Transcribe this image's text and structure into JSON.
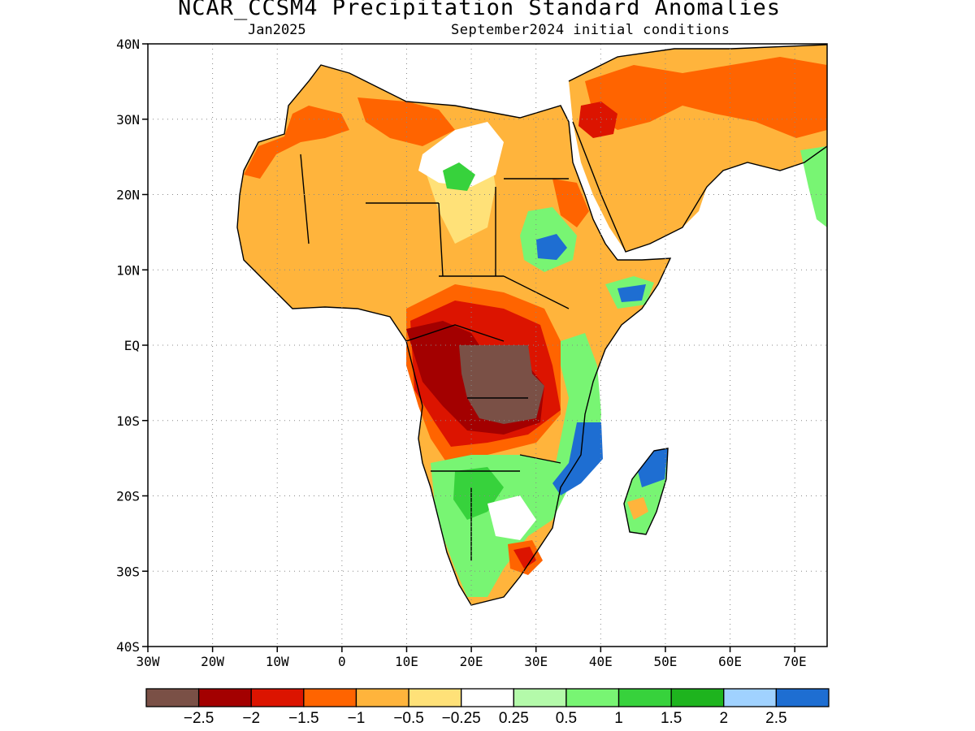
{
  "header": {
    "title": "NCAR_CCSM4 Precipitation Standard Anomalies",
    "valid_month": "Jan2025",
    "init_conditions": "September2024 initial conditions"
  },
  "map": {
    "lat_labels": [
      "40N",
      "30N",
      "20N",
      "10N",
      "EQ",
      "10S",
      "20S",
      "30S",
      "40S"
    ],
    "lat_values": [
      40,
      30,
      20,
      10,
      0,
      -10,
      -20,
      -30,
      -40
    ],
    "lon_labels": [
      "30W",
      "20W",
      "10W",
      "0",
      "10E",
      "20E",
      "30E",
      "40E",
      "50E",
      "60E",
      "70E"
    ],
    "lon_values": [
      -30,
      -20,
      -10,
      0,
      10,
      20,
      30,
      40,
      50,
      60,
      70
    ],
    "lon_range": [
      -30,
      75
    ],
    "lat_range": [
      -40,
      40
    ],
    "grid": "dotted"
  },
  "legend": {
    "colors": [
      "#7a5046",
      "#a30000",
      "#dc1400",
      "#ff6400",
      "#ffb43c",
      "#ffe178",
      "#ffffff",
      "#b4faaa",
      "#78f573",
      "#37d23c",
      "#1eb41e",
      "#a0d2ff",
      "#1e6ed2"
    ],
    "labels": [
      "−2.5",
      "−2",
      "−1.5",
      "−1",
      "−0.5",
      "−0.25",
      "0.25",
      "0.5",
      "1",
      "1.5",
      "2",
      "2.5"
    ]
  }
}
